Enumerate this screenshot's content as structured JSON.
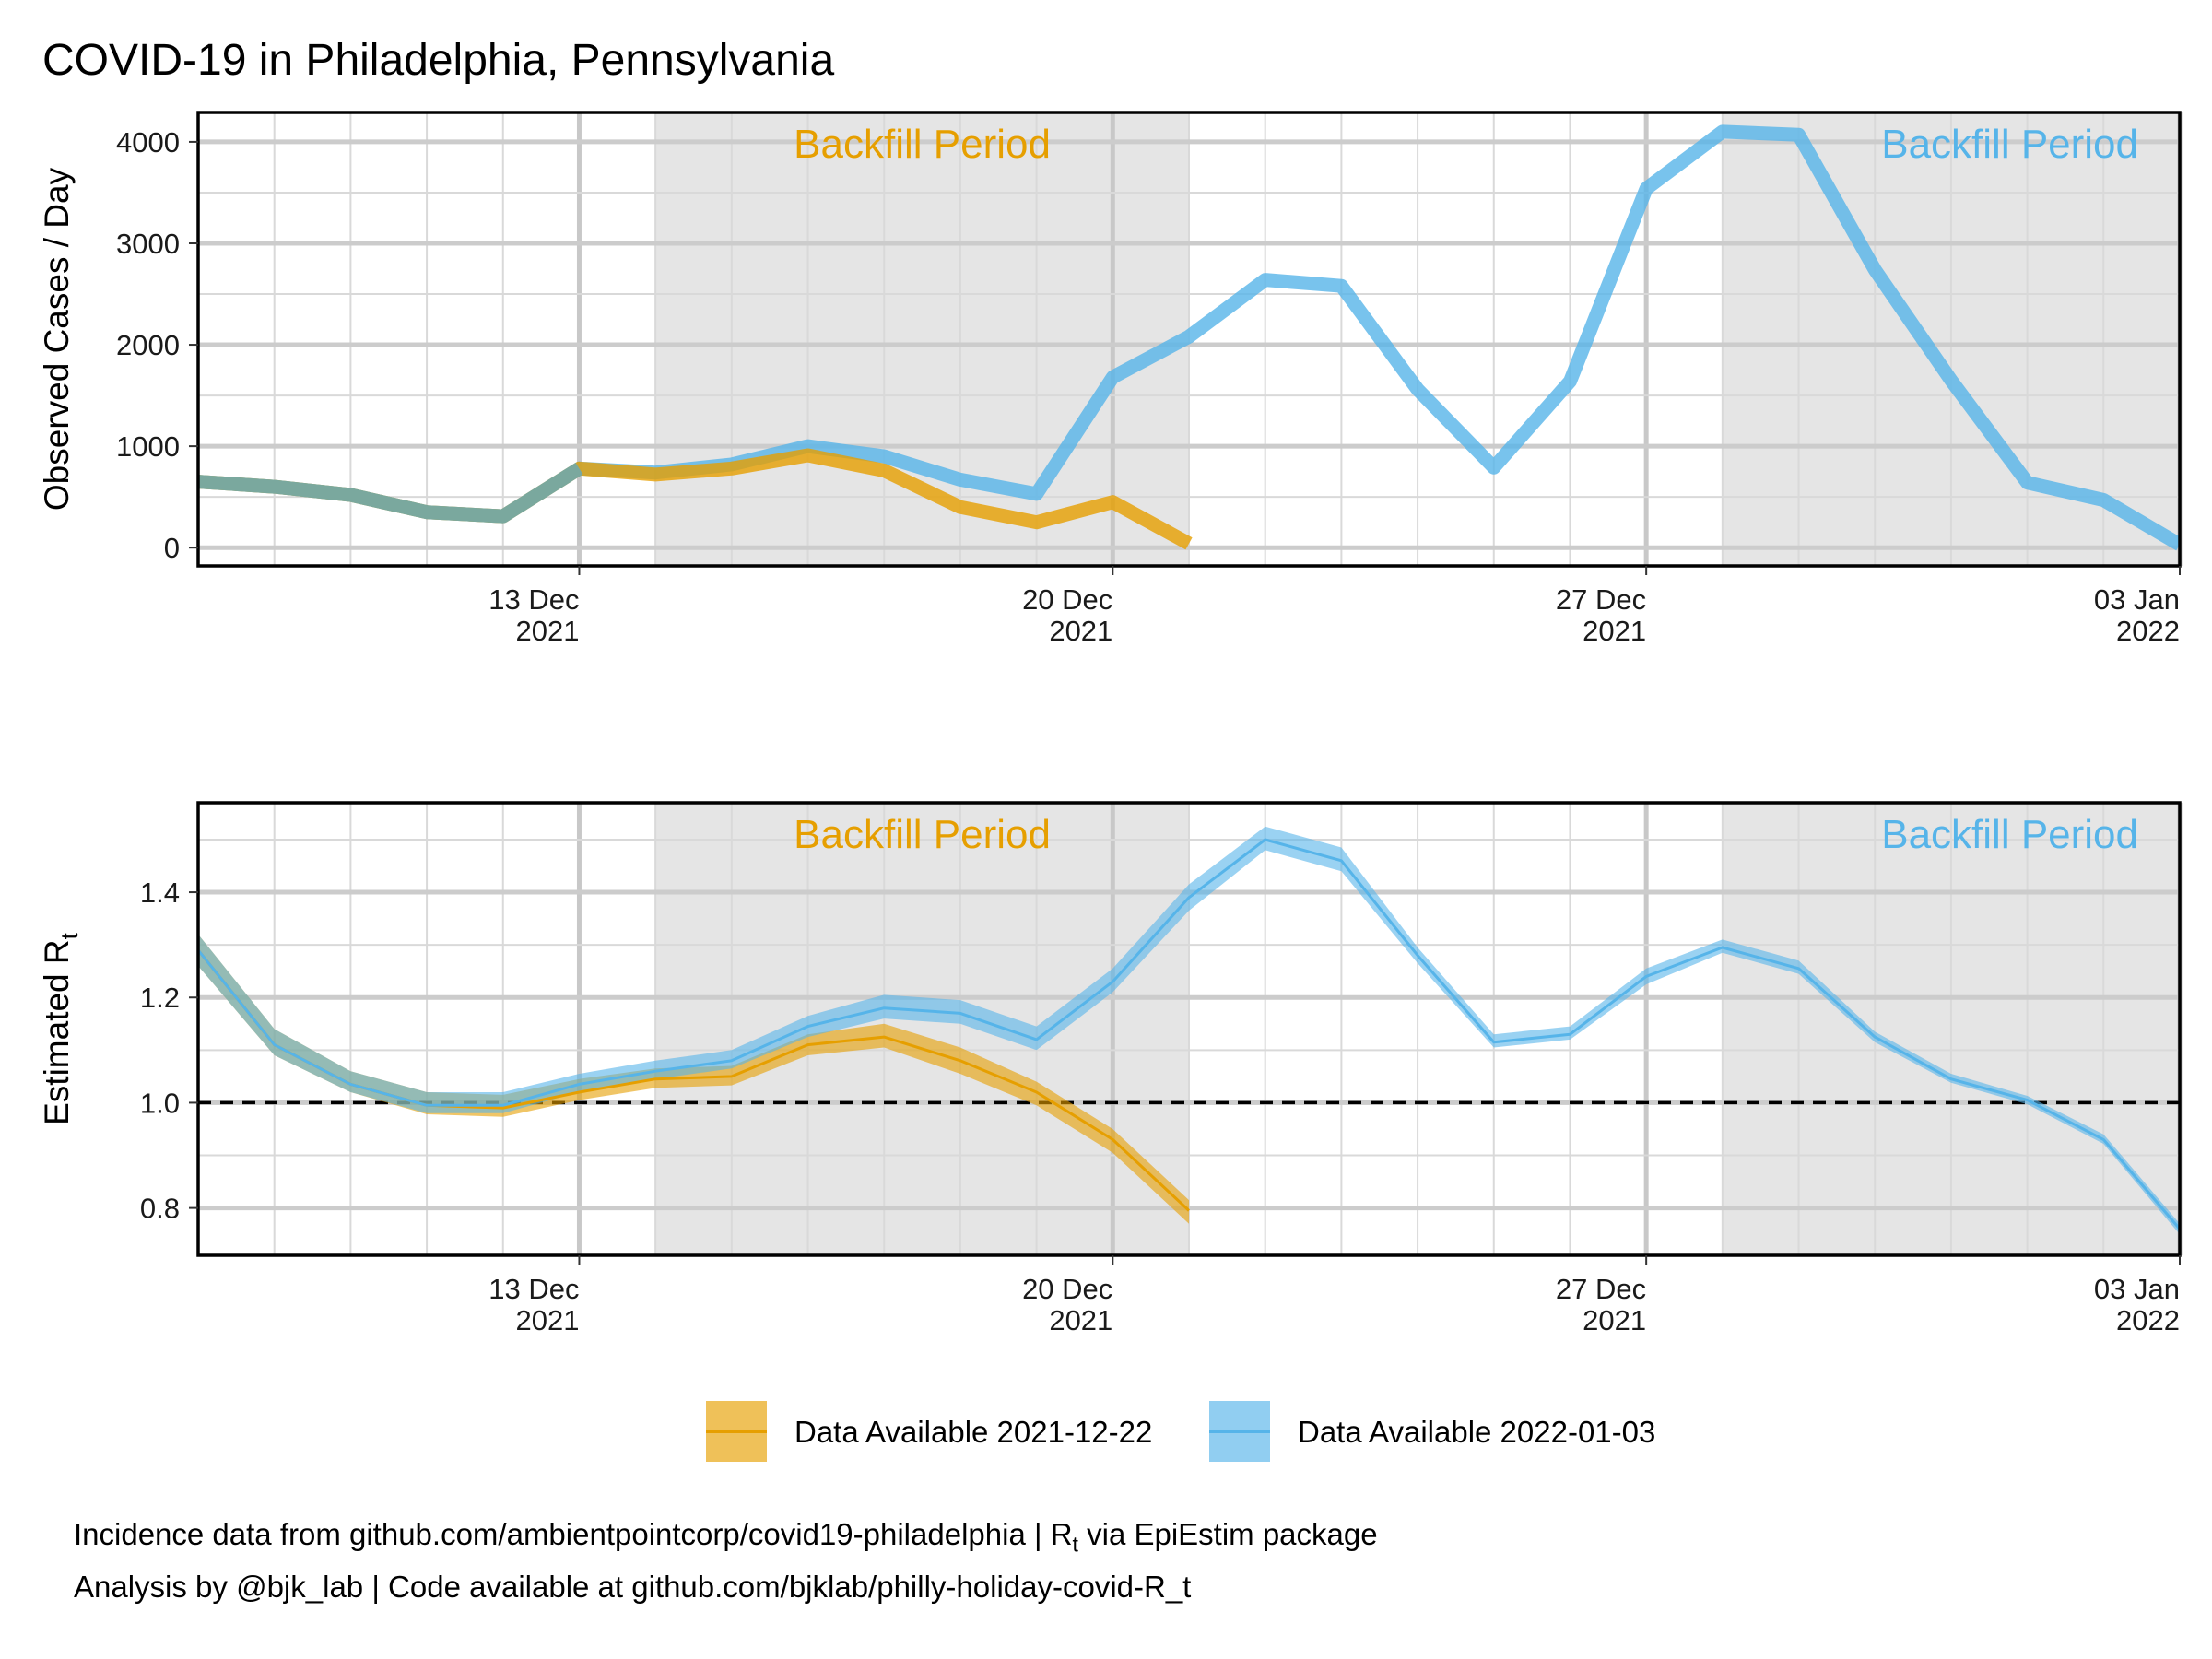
{
  "title": "COVID-19 in Philadelphia, Pennsylvania",
  "colors": {
    "orange": "#E69F00",
    "blue": "#56B4E9",
    "blend": "#7AA89E",
    "shade": "#E5E5E5",
    "grid_major": "#CCCCCC",
    "grid_minor": "#D9D9D9"
  },
  "chart_data": [
    {
      "type": "line",
      "ylabel": "Observed Cases / Day",
      "xlim": [
        "2021-12-08",
        "2022-01-03"
      ],
      "ylim": [
        -180,
        4290
      ],
      "yticks": [
        0,
        1000,
        2000,
        3000,
        4000
      ],
      "ytick_labels": [
        "0",
        "1000",
        "2000",
        "3000",
        "4000"
      ],
      "grid": true,
      "backfill_periods": [
        {
          "from": "2021-12-14",
          "to": "2021-12-21",
          "label": "Backfill Period",
          "color": "#E69F00"
        },
        {
          "from": "2021-12-28",
          "to": "2022-01-03",
          "label": "Backfill Period",
          "color": "#56B4E9"
        }
      ],
      "series": [
        {
          "name": "Data Available 2021-12-22",
          "color": "#E69F00",
          "x": [
            "2021-12-08",
            "2021-12-09",
            "2021-12-10",
            "2021-12-11",
            "2021-12-12",
            "2021-12-13",
            "2021-12-14",
            "2021-12-15",
            "2021-12-16",
            "2021-12-17",
            "2021-12-18",
            "2021-12-19",
            "2021-12-20",
            "2021-12-21"
          ],
          "values": [
            650,
            600,
            520,
            350,
            310,
            780,
            720,
            780,
            910,
            760,
            400,
            250,
            450,
            40
          ]
        },
        {
          "name": "Data Available 2022-01-03",
          "color": "#56B4E9",
          "x": [
            "2021-12-08",
            "2021-12-09",
            "2021-12-10",
            "2021-12-11",
            "2021-12-12",
            "2021-12-13",
            "2021-12-14",
            "2021-12-15",
            "2021-12-16",
            "2021-12-17",
            "2021-12-18",
            "2021-12-19",
            "2021-12-20",
            "2021-12-21",
            "2021-12-22",
            "2021-12-23",
            "2021-12-24",
            "2021-12-25",
            "2021-12-26",
            "2021-12-27",
            "2021-12-28",
            "2021-12-29",
            "2021-12-30",
            "2021-12-31",
            "2022-01-01",
            "2022-01-02",
            "2022-01-03"
          ],
          "values": [
            650,
            600,
            520,
            350,
            310,
            780,
            740,
            820,
            1000,
            900,
            670,
            530,
            1680,
            2080,
            2640,
            2580,
            1560,
            790,
            1640,
            3540,
            4100,
            4070,
            2740,
            1650,
            640,
            470,
            30
          ]
        }
      ]
    },
    {
      "type": "line",
      "ylabel": "Estimated R",
      "ylabel_subscript": "t",
      "xlim": [
        "2021-12-08",
        "2022-01-03"
      ],
      "ylim": [
        0.71,
        1.57
      ],
      "yticks": [
        0.8,
        1.0,
        1.2,
        1.4
      ],
      "ytick_labels": [
        "0.8",
        "1.0",
        "1.2",
        "1.4"
      ],
      "reference_line": 1.0,
      "grid": true,
      "backfill_periods": [
        {
          "from": "2021-12-14",
          "to": "2021-12-21",
          "label": "Backfill Period",
          "color": "#E69F00"
        },
        {
          "from": "2021-12-28",
          "to": "2022-01-03",
          "label": "Backfill Period",
          "color": "#56B4E9"
        }
      ],
      "series": [
        {
          "name": "Data Available 2021-12-22",
          "color": "#E69F00",
          "x": [
            "2021-12-08",
            "2021-12-09",
            "2021-12-10",
            "2021-12-11",
            "2021-12-12",
            "2021-12-13",
            "2021-12-14",
            "2021-12-15",
            "2021-12-16",
            "2021-12-17",
            "2021-12-18",
            "2021-12-19",
            "2021-12-20",
            "2021-12-21"
          ],
          "mean": [
            1.29,
            1.11,
            1.035,
            0.995,
            0.99,
            1.02,
            1.045,
            1.05,
            1.11,
            1.125,
            1.08,
            1.02,
            0.93,
            0.795
          ],
          "lower": [
            1.26,
            1.09,
            1.02,
            0.978,
            0.973,
            1.005,
            1.028,
            1.033,
            1.09,
            1.105,
            1.055,
            0.995,
            0.905,
            0.77
          ],
          "upper": [
            1.32,
            1.14,
            1.06,
            1.02,
            1.015,
            1.045,
            1.065,
            1.07,
            1.13,
            1.15,
            1.105,
            1.04,
            0.95,
            0.815
          ]
        },
        {
          "name": "Data Available 2022-01-03",
          "color": "#56B4E9",
          "x": [
            "2021-12-08",
            "2021-12-09",
            "2021-12-10",
            "2021-12-11",
            "2021-12-12",
            "2021-12-13",
            "2021-12-14",
            "2021-12-15",
            "2021-12-16",
            "2021-12-17",
            "2021-12-18",
            "2021-12-19",
            "2021-12-20",
            "2021-12-21",
            "2021-12-22",
            "2021-12-23",
            "2021-12-24",
            "2021-12-25",
            "2021-12-26",
            "2021-12-27",
            "2021-12-28",
            "2021-12-29",
            "2021-12-30",
            "2021-12-31",
            "2022-01-01",
            "2022-01-02",
            "2022-01-03"
          ],
          "mean": [
            1.29,
            1.11,
            1.035,
            0.995,
            0.995,
            1.035,
            1.06,
            1.08,
            1.145,
            1.18,
            1.17,
            1.12,
            1.23,
            1.39,
            1.5,
            1.46,
            1.28,
            1.115,
            1.13,
            1.24,
            1.295,
            1.255,
            1.125,
            1.045,
            1.005,
            0.93,
            0.76
          ],
          "lower": [
            1.26,
            1.09,
            1.02,
            0.98,
            0.98,
            1.02,
            1.045,
            1.065,
            1.125,
            1.16,
            1.15,
            1.1,
            1.21,
            1.365,
            1.48,
            1.44,
            1.265,
            1.105,
            1.12,
            1.225,
            1.285,
            1.245,
            1.115,
            1.038,
            0.997,
            0.922,
            0.75
          ],
          "upper": [
            1.32,
            1.14,
            1.06,
            1.02,
            1.02,
            1.055,
            1.08,
            1.1,
            1.165,
            1.205,
            1.195,
            1.145,
            1.255,
            1.415,
            1.525,
            1.485,
            1.295,
            1.13,
            1.145,
            1.255,
            1.31,
            1.27,
            1.135,
            1.055,
            1.013,
            0.94,
            0.77
          ]
        }
      ]
    }
  ],
  "x_axis": {
    "tick_labels": [
      {
        "date": "2021-12-13",
        "day": "13 Dec",
        "year": "2021"
      },
      {
        "date": "2021-12-20",
        "day": "20 Dec",
        "year": "2021"
      },
      {
        "date": "2021-12-27",
        "day": "27 Dec",
        "year": "2021"
      },
      {
        "date": "2022-01-03",
        "day": "03 Jan",
        "year": "2022"
      }
    ]
  },
  "legend": {
    "position": "bottom",
    "items": [
      {
        "label": "Data Available 2021-12-22",
        "color": "#E69F00"
      },
      {
        "label": "Data Available 2022-01-03",
        "color": "#56B4E9"
      }
    ]
  },
  "footer": {
    "line1_prefix": "Incidence data from github.com/ambientpointcorp/covid19-philadelphia | R",
    "line1_sub": "t",
    "line1_suffix": " via EpiEstim package",
    "line2": "Analysis by @bjk_lab | Code available at github.com/bjklab/philly-holiday-covid-R_t"
  }
}
